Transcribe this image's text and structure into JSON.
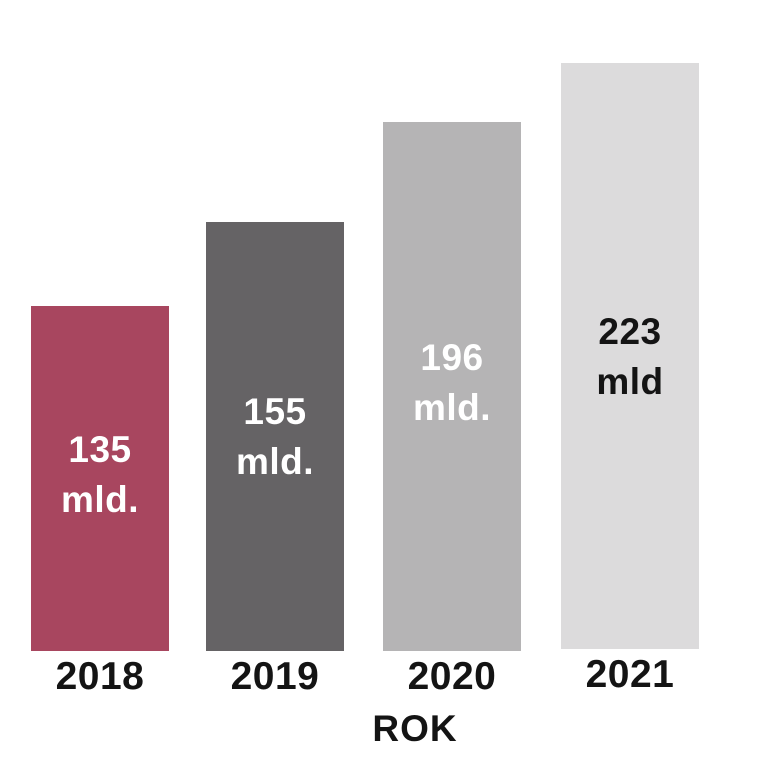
{
  "chart_data": {
    "type": "bar",
    "title": "",
    "categories": [
      "2018",
      "2019",
      "2020",
      "2021"
    ],
    "values": [
      135,
      155,
      196,
      223
    ],
    "unit": "mld.",
    "xlabel": "ROK",
    "ylabel": "",
    "grid": false,
    "legend": false,
    "background_color": "#FFFFFF",
    "axis_text_color": "#141414",
    "bars": [
      {
        "category": "2018",
        "value": 135,
        "label_line1": "135",
        "label_line2": "mld."
      },
      {
        "category": "2019",
        "value": 155,
        "label_line1": "155",
        "label_line2": "mld."
      },
      {
        "category": "2020",
        "value": 196,
        "label_line1": "196",
        "label_line2": "mld."
      },
      {
        "category": "2021",
        "value": 223,
        "label_line1": "223",
        "label_line2": "mld"
      }
    ],
    "bar_colors": [
      "#A8465F",
      "#656365",
      "#B5B4B5",
      "#DCDBDC"
    ],
    "bar_label_colors": [
      "#FFFFFF",
      "#FFFFFF",
      "#FFFFFF",
      "#141414"
    ]
  }
}
